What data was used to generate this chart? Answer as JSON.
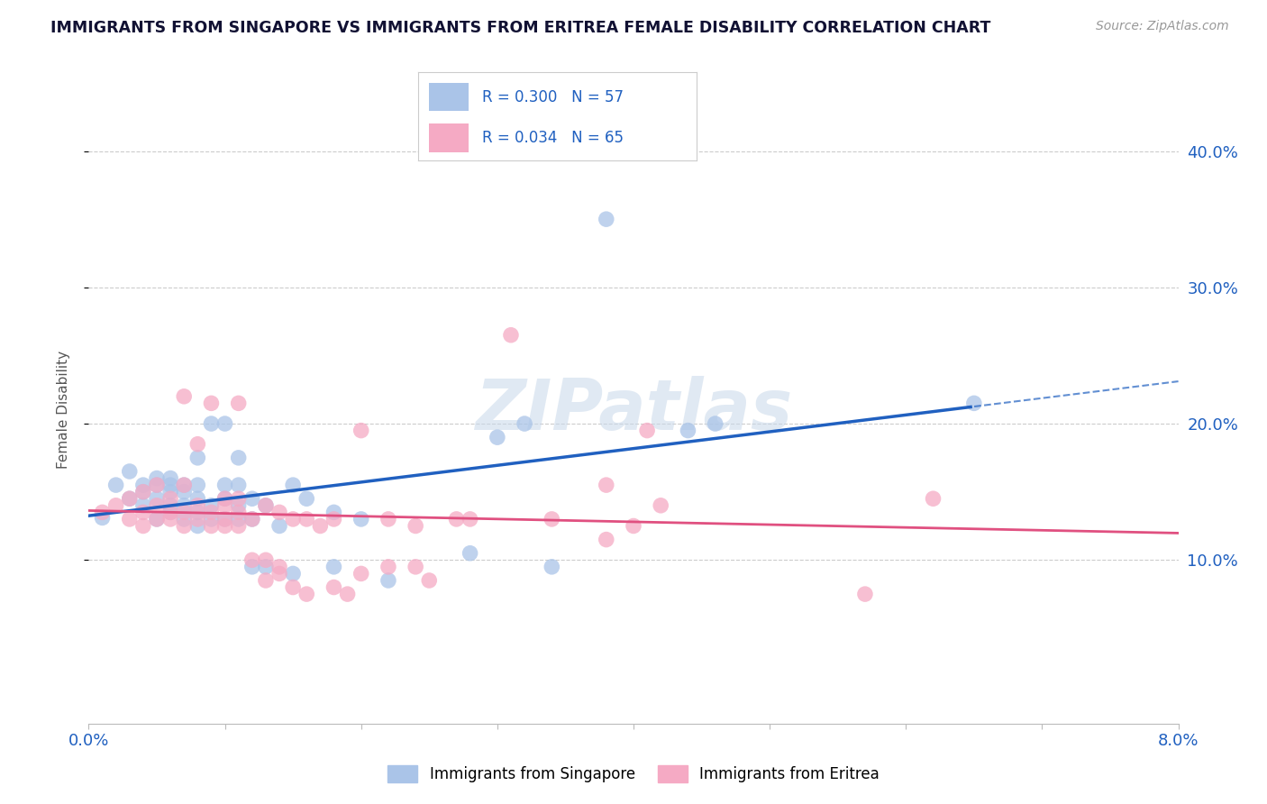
{
  "title": "IMMIGRANTS FROM SINGAPORE VS IMMIGRANTS FROM ERITREA FEMALE DISABILITY CORRELATION CHART",
  "source": "Source: ZipAtlas.com",
  "ylabel": "Female Disability",
  "xlim": [
    0.0,
    0.08
  ],
  "ylim": [
    -0.02,
    0.44
  ],
  "ytick_vals": [
    0.1,
    0.2,
    0.3,
    0.4
  ],
  "ytick_labels": [
    "10.0%",
    "20.0%",
    "30.0%",
    "40.0%"
  ],
  "singapore_color": "#aac4e8",
  "eritrea_color": "#f5aac4",
  "singapore_line_color": "#2060c0",
  "eritrea_line_color": "#e05080",
  "singapore_R": 0.3,
  "singapore_N": 57,
  "eritrea_R": 0.034,
  "eritrea_N": 65,
  "watermark": "ZIPatlas",
  "singapore_points": [
    [
      0.001,
      0.131
    ],
    [
      0.002,
      0.155
    ],
    [
      0.003,
      0.145
    ],
    [
      0.003,
      0.165
    ],
    [
      0.004,
      0.14
    ],
    [
      0.004,
      0.15
    ],
    [
      0.004,
      0.155
    ],
    [
      0.005,
      0.13
    ],
    [
      0.005,
      0.145
    ],
    [
      0.005,
      0.155
    ],
    [
      0.005,
      0.16
    ],
    [
      0.006,
      0.135
    ],
    [
      0.006,
      0.14
    ],
    [
      0.006,
      0.15
    ],
    [
      0.006,
      0.155
    ],
    [
      0.006,
      0.16
    ],
    [
      0.007,
      0.13
    ],
    [
      0.007,
      0.14
    ],
    [
      0.007,
      0.15
    ],
    [
      0.007,
      0.155
    ],
    [
      0.008,
      0.125
    ],
    [
      0.008,
      0.135
    ],
    [
      0.008,
      0.145
    ],
    [
      0.008,
      0.155
    ],
    [
      0.008,
      0.175
    ],
    [
      0.009,
      0.13
    ],
    [
      0.009,
      0.14
    ],
    [
      0.009,
      0.2
    ],
    [
      0.01,
      0.13
    ],
    [
      0.01,
      0.145
    ],
    [
      0.01,
      0.155
    ],
    [
      0.01,
      0.2
    ],
    [
      0.011,
      0.13
    ],
    [
      0.011,
      0.14
    ],
    [
      0.011,
      0.155
    ],
    [
      0.011,
      0.175
    ],
    [
      0.012,
      0.095
    ],
    [
      0.012,
      0.13
    ],
    [
      0.012,
      0.145
    ],
    [
      0.013,
      0.095
    ],
    [
      0.013,
      0.14
    ],
    [
      0.014,
      0.125
    ],
    [
      0.015,
      0.09
    ],
    [
      0.015,
      0.155
    ],
    [
      0.016,
      0.145
    ],
    [
      0.018,
      0.095
    ],
    [
      0.018,
      0.135
    ],
    [
      0.02,
      0.13
    ],
    [
      0.022,
      0.085
    ],
    [
      0.028,
      0.105
    ],
    [
      0.03,
      0.19
    ],
    [
      0.032,
      0.2
    ],
    [
      0.034,
      0.095
    ],
    [
      0.038,
      0.35
    ],
    [
      0.044,
      0.195
    ],
    [
      0.046,
      0.2
    ],
    [
      0.065,
      0.215
    ]
  ],
  "eritrea_points": [
    [
      0.001,
      0.135
    ],
    [
      0.002,
      0.14
    ],
    [
      0.003,
      0.13
    ],
    [
      0.003,
      0.145
    ],
    [
      0.004,
      0.125
    ],
    [
      0.004,
      0.135
    ],
    [
      0.004,
      0.15
    ],
    [
      0.005,
      0.13
    ],
    [
      0.005,
      0.14
    ],
    [
      0.005,
      0.155
    ],
    [
      0.006,
      0.13
    ],
    [
      0.006,
      0.135
    ],
    [
      0.006,
      0.145
    ],
    [
      0.007,
      0.125
    ],
    [
      0.007,
      0.135
    ],
    [
      0.007,
      0.155
    ],
    [
      0.007,
      0.22
    ],
    [
      0.008,
      0.13
    ],
    [
      0.008,
      0.14
    ],
    [
      0.008,
      0.185
    ],
    [
      0.009,
      0.125
    ],
    [
      0.009,
      0.135
    ],
    [
      0.009,
      0.215
    ],
    [
      0.01,
      0.125
    ],
    [
      0.01,
      0.13
    ],
    [
      0.01,
      0.14
    ],
    [
      0.01,
      0.145
    ],
    [
      0.011,
      0.125
    ],
    [
      0.011,
      0.135
    ],
    [
      0.011,
      0.145
    ],
    [
      0.011,
      0.215
    ],
    [
      0.012,
      0.1
    ],
    [
      0.012,
      0.13
    ],
    [
      0.013,
      0.085
    ],
    [
      0.013,
      0.1
    ],
    [
      0.013,
      0.14
    ],
    [
      0.014,
      0.09
    ],
    [
      0.014,
      0.095
    ],
    [
      0.014,
      0.135
    ],
    [
      0.015,
      0.08
    ],
    [
      0.015,
      0.13
    ],
    [
      0.016,
      0.075
    ],
    [
      0.016,
      0.13
    ],
    [
      0.017,
      0.125
    ],
    [
      0.018,
      0.08
    ],
    [
      0.018,
      0.13
    ],
    [
      0.019,
      0.075
    ],
    [
      0.02,
      0.09
    ],
    [
      0.02,
      0.195
    ],
    [
      0.022,
      0.095
    ],
    [
      0.022,
      0.13
    ],
    [
      0.024,
      0.095
    ],
    [
      0.024,
      0.125
    ],
    [
      0.025,
      0.085
    ],
    [
      0.027,
      0.13
    ],
    [
      0.028,
      0.13
    ],
    [
      0.031,
      0.265
    ],
    [
      0.034,
      0.13
    ],
    [
      0.038,
      0.115
    ],
    [
      0.038,
      0.155
    ],
    [
      0.04,
      0.125
    ],
    [
      0.041,
      0.195
    ],
    [
      0.042,
      0.14
    ],
    [
      0.057,
      0.075
    ],
    [
      0.062,
      0.145
    ]
  ]
}
